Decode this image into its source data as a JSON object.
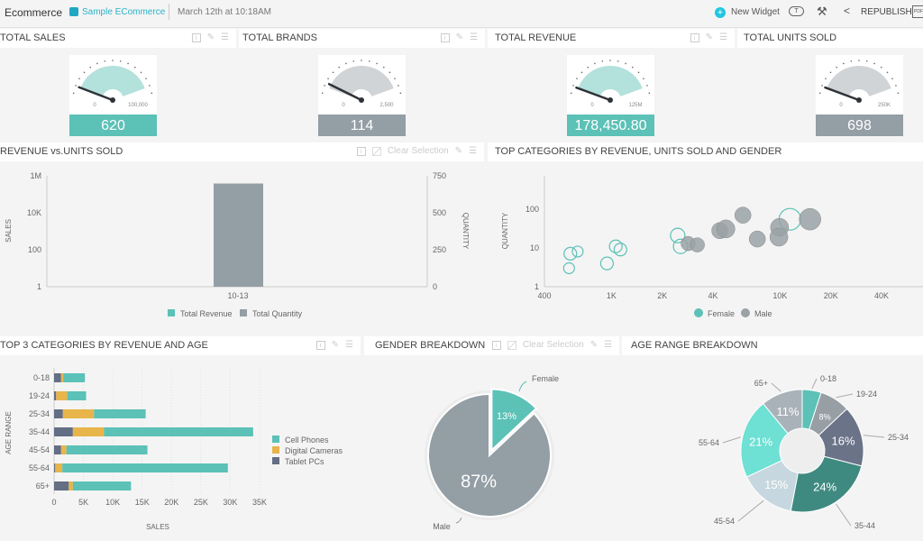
{
  "header": {
    "app": "Ecommerce",
    "datasource": "Sample ECommerce",
    "timestamp": "March 12th at 10:18AM",
    "new_widget": "New Widget",
    "republish": "REPUBLISH",
    "pdf": "PDF"
  },
  "colors": {
    "teal": "#5cc1b6",
    "gray": "#939ea5",
    "accent": "#1fc6e0"
  },
  "widgets": {
    "total_sales": {
      "title": "TOTAL SALES",
      "min": "0",
      "max": "100,000",
      "value": "620",
      "fraction": 0.0062,
      "color": "#5cc1b6",
      "arc": "#b3e1dc"
    },
    "total_brands": {
      "title": "TOTAL BRANDS",
      "min": "0",
      "max": "2,500",
      "value": "114",
      "fraction": 0.0456,
      "color": "#939ea5",
      "arc": "#d0d4d7"
    },
    "total_revenue": {
      "title": "TOTAL REVENUE",
      "min": "0",
      "max": "125M",
      "value": "178,450.80",
      "fraction": 0.0014,
      "color": "#5cc1b6",
      "arc": "#b3e1dc"
    },
    "total_units": {
      "title": "TOTAL UNITS SOLD",
      "min": "0",
      "max": "250K",
      "value": "698",
      "fraction": 0.0028,
      "color": "#939ea5",
      "arc": "#d0d4d7"
    },
    "rev_units": {
      "title": "REVENUE vs.UNITS SOLD",
      "clear": "Clear Selection"
    },
    "top_cat": {
      "title": "TOP CATEGORIES BY REVENUE, UNITS SOLD AND GENDER"
    },
    "top3": {
      "title": "TOP 3 CATEGORIES BY REVENUE AND AGE"
    },
    "gender": {
      "title": "GENDER BREAKDOWN",
      "clear": "Clear Selection"
    },
    "age": {
      "title": "AGE RANGE BREAKDOWN"
    }
  },
  "chart_data": [
    {
      "type": "bar",
      "categories": [
        "10-13"
      ],
      "series": [
        {
          "name": "Total Revenue",
          "values": [
            178450.8
          ],
          "axis": "left",
          "color": "#5cc1b6"
        },
        {
          "name": "Total Quantity",
          "values": [
            698
          ],
          "axis": "right",
          "color": "#939ea5"
        }
      ],
      "ylabel": "SALES",
      "y2label": "QUANTITY",
      "yscale": "log",
      "ylim": [
        1,
        1000000
      ],
      "yticks": [
        "1",
        "100",
        "10K",
        "1M"
      ],
      "yticks_values": [
        1,
        100,
        10000,
        1000000
      ],
      "y2lim": [
        0,
        750
      ],
      "y2ticks": [
        "0",
        "250",
        "500",
        "750"
      ],
      "legend": "bottom"
    },
    {
      "type": "scatter",
      "xscale": "log",
      "yscale": "log",
      "xlim": [
        400,
        60000
      ],
      "ylim": [
        1,
        1000
      ],
      "ylabel": "QUANTITY",
      "xticks": [
        "400",
        "1K",
        "2K",
        "4K",
        "10K",
        "20K",
        "40K"
      ],
      "xticks_values": [
        400,
        1000,
        2000,
        4000,
        10000,
        20000,
        40000
      ],
      "yticks": [
        "1",
        "10",
        "100"
      ],
      "yticks_values": [
        1,
        10,
        100
      ],
      "legend": "bottom",
      "series": [
        {
          "name": "Female",
          "color": "#5cc1b6",
          "points": [
            [
              560,
              3,
              6
            ],
            [
              570,
              7.1,
              7
            ],
            [
              630,
              8.1,
              6
            ],
            [
              940,
              4,
              7
            ],
            [
              1060,
              11,
              7
            ],
            [
              1130,
              9.1,
              7
            ],
            [
              2470,
              21,
              8
            ],
            [
              2570,
              11,
              8
            ],
            [
              11450,
              55,
              12
            ]
          ]
        },
        {
          "name": "Male",
          "color": "#9aa2a6",
          "points": [
            [
              2850,
              13,
              8
            ],
            [
              3230,
              12,
              8
            ],
            [
              4390,
              28,
              9
            ],
            [
              4770,
              31,
              10
            ],
            [
              6020,
              70,
              9
            ],
            [
              7330,
              17,
              9
            ],
            [
              9930,
              34,
              10
            ],
            [
              9840,
              19,
              10
            ],
            [
              15060,
              55,
              12
            ]
          ]
        }
      ]
    },
    {
      "type": "bar",
      "orientation": "horizontal",
      "stacked": true,
      "categories": [
        "0-18",
        "19-24",
        "25-34",
        "35-44",
        "45-54",
        "55-64",
        "65+"
      ],
      "xlabel": "SALES",
      "ylabel": "AGE RANGE",
      "xlim": [
        0,
        35000
      ],
      "xticks": [
        "0",
        "5K",
        "10K",
        "15K",
        "20K",
        "25K",
        "30K",
        "35K"
      ],
      "legend": "right",
      "series": [
        {
          "name": "Tablet PCs",
          "color": "#646e84",
          "values": [
            1200,
            350,
            1500,
            3200,
            1200,
            200,
            2500
          ]
        },
        {
          "name": "Digital Cameras",
          "color": "#e7b54a",
          "values": [
            350,
            1900,
            5300,
            5300,
            900,
            1200,
            700
          ]
        },
        {
          "name": "Cell Phones",
          "color": "#5cc1b6",
          "values": [
            3700,
            3200,
            8800,
            25400,
            13800,
            28200,
            9900
          ]
        }
      ]
    },
    {
      "type": "pie",
      "slices": [
        {
          "label": "Female",
          "value": 13,
          "text": "13%",
          "color": "#5cc1b6"
        },
        {
          "label": "Male",
          "value": 87,
          "text": "87%",
          "color": "#939ea5"
        }
      ]
    },
    {
      "type": "pie",
      "donut": true,
      "slices": [
        {
          "label": "0-18",
          "value": 5,
          "text": "",
          "color": "#5cc1b6"
        },
        {
          "label": "19-24",
          "value": 8,
          "text": "8%",
          "color": "#979fa5"
        },
        {
          "label": "25-34",
          "value": 16,
          "text": "16%",
          "color": "#6b7388"
        },
        {
          "label": "35-44",
          "value": 24,
          "text": "24%",
          "color": "#3f8a80"
        },
        {
          "label": "45-54",
          "value": 15,
          "text": "15%",
          "color": "#c6d7df"
        },
        {
          "label": "55-64",
          "value": 21,
          "text": "21%",
          "color": "#6ee0d4"
        },
        {
          "label": "65+",
          "value": 11,
          "text": "11%",
          "color": "#a9b2b8"
        }
      ]
    }
  ]
}
